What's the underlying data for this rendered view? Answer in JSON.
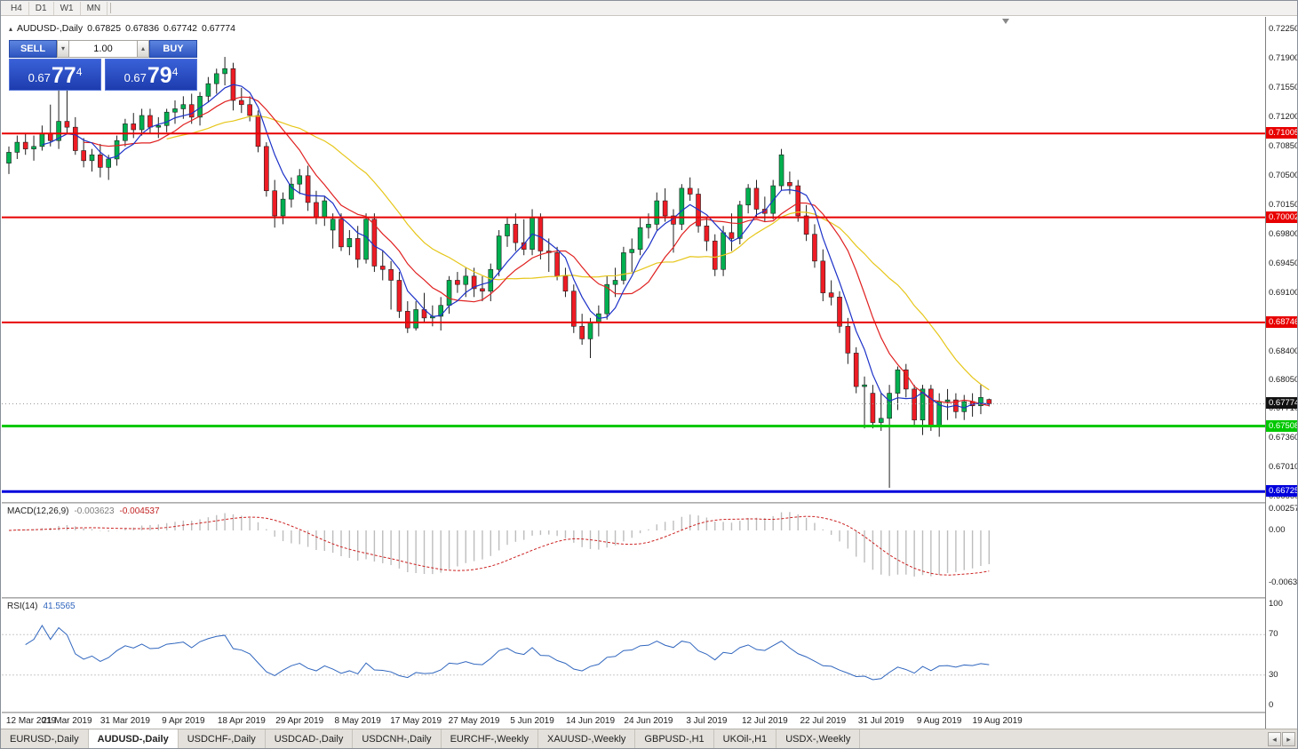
{
  "toolbar": {
    "timeframes": [
      "H4",
      "D1",
      "W1",
      "MN"
    ]
  },
  "chart_header": {
    "collapse_icon": "▴",
    "symbol": "AUDUSD-,Daily",
    "open": "0.67825",
    "high": "0.67836",
    "low": "0.67742",
    "close": "0.67774"
  },
  "trade_panel": {
    "sell_label": "SELL",
    "buy_label": "BUY",
    "volume": "1.00",
    "volume_down_icon": "▾",
    "volume_up_icon": "▴",
    "sell_price": {
      "base": "0.67",
      "big": "77",
      "pip": "4"
    },
    "buy_price": {
      "base": "0.67",
      "big": "79",
      "pip": "4"
    }
  },
  "price_axis": {
    "labels": [
      "0.72250",
      "0.71900",
      "0.71550",
      "0.71200",
      "0.70850",
      "0.70500",
      "0.70150",
      "0.69800",
      "0.69450",
      "0.69100",
      "0.68750",
      "0.68400",
      "0.68050",
      "0.67710",
      "0.67360",
      "0.67010",
      "0.66660"
    ]
  },
  "current_price": {
    "value": "0.67774",
    "badge_color": "#111111"
  },
  "macd": {
    "label": "MACD(12,26,9)",
    "main": "-0.003623",
    "signal": "-0.004537",
    "axis": [
      "0.002574",
      "0.00",
      "-0.006326"
    ]
  },
  "rsi": {
    "label": "RSI(14)",
    "value": "41.5565",
    "axis": [
      "100",
      "70",
      "30",
      "0"
    ]
  },
  "date_axis": {
    "labels": [
      "12 Mar 2019",
      "21 Mar 2019",
      "31 Mar 2019",
      "9 Apr 2019",
      "18 Apr 2019",
      "29 Apr 2019",
      "8 May 2019",
      "17 May 2019",
      "27 May 2019",
      "5 Jun 2019",
      "14 Jun 2019",
      "24 Jun 2019",
      "3 Jul 2019",
      "12 Jul 2019",
      "22 Jul 2019",
      "31 Jul 2019",
      "9 Aug 2019",
      "19 Aug 2019"
    ]
  },
  "tabs": {
    "items": [
      {
        "label": "EURUSD-,Daily",
        "active": false
      },
      {
        "label": "AUDUSD-,Daily",
        "active": true
      },
      {
        "label": "USDCHF-,Daily",
        "active": false
      },
      {
        "label": "USDCAD-,Daily",
        "active": false
      },
      {
        "label": "USDCNH-,Daily",
        "active": false
      },
      {
        "label": "EURCHF-,Weekly",
        "active": false
      },
      {
        "label": "XAUUSD-,Weekly",
        "active": false
      },
      {
        "label": "GBPUSD-,H1",
        "active": false
      },
      {
        "label": "UKOil-,H1",
        "active": false
      },
      {
        "label": "USDX-,Weekly",
        "active": false
      }
    ],
    "scroll_left": "◂",
    "scroll_right": "▸"
  },
  "chart_data": {
    "type": "candlestick",
    "symbol": "AUDUSD",
    "timeframe": "Daily",
    "bid": 0.67774,
    "colors": {
      "bull": "#00b050",
      "bear": "#ee1c25",
      "outline": "#1f1f1f",
      "macd_hist": "#bdbdbd",
      "macd_signal": "#cc2222",
      "rsi_line": "#3066be",
      "level_red": "#e80000",
      "level_green": "#00c800",
      "level_blue": "#0000dd"
    },
    "moving_averages": [
      {
        "period": 5,
        "color": "#1d32c8"
      },
      {
        "period": 10,
        "color": "#e02020"
      },
      {
        "period": 20,
        "color": "#e6c619"
      }
    ],
    "levels": [
      {
        "price": 0.71005,
        "label": "0.71005",
        "color": "#e80000",
        "thickness": 2
      },
      {
        "price": 0.70002,
        "label": "0.70002",
        "color": "#e80000",
        "thickness": 2
      },
      {
        "price": 0.68746,
        "label": "0.68746",
        "color": "#e80000",
        "thickness": 2
      },
      {
        "price": 0.67508,
        "label": "0.67508",
        "color": "#00c800",
        "thickness": 3
      },
      {
        "price": 0.66725,
        "label": "0.66725",
        "color": "#0000dd",
        "thickness": 3
      }
    ],
    "indicators": {
      "macd": {
        "fast": 12,
        "slow": 26,
        "signal": 9,
        "main_value": -0.003623,
        "signal_value": -0.004537
      },
      "rsi": {
        "period": 14,
        "value": 41.5565
      }
    },
    "candles": [
      [
        "2019-03-12",
        0.7065,
        0.7085,
        0.7052,
        0.7078
      ],
      [
        "2019-03-13",
        0.7078,
        0.7098,
        0.707,
        0.709
      ],
      [
        "2019-03-14",
        0.709,
        0.71,
        0.7075,
        0.7082
      ],
      [
        "2019-03-15",
        0.7082,
        0.7098,
        0.7068,
        0.7085
      ],
      [
        "2019-03-18",
        0.7085,
        0.711,
        0.708,
        0.71
      ],
      [
        "2019-03-19",
        0.71,
        0.7135,
        0.7085,
        0.7092
      ],
      [
        "2019-03-20",
        0.7092,
        0.7168,
        0.7082,
        0.7115
      ],
      [
        "2019-03-21",
        0.7115,
        0.716,
        0.71,
        0.7108
      ],
      [
        "2019-03-22",
        0.7108,
        0.712,
        0.7075,
        0.708
      ],
      [
        "2019-03-25",
        0.708,
        0.7095,
        0.706,
        0.7068
      ],
      [
        "2019-03-26",
        0.7068,
        0.7082,
        0.7055,
        0.7075
      ],
      [
        "2019-03-27",
        0.7075,
        0.7088,
        0.7048,
        0.706
      ],
      [
        "2019-03-28",
        0.706,
        0.7075,
        0.7045,
        0.707
      ],
      [
        "2019-03-29",
        0.707,
        0.7098,
        0.7062,
        0.7092
      ],
      [
        "2019-04-01",
        0.7092,
        0.7118,
        0.7085,
        0.7112
      ],
      [
        "2019-04-02",
        0.7112,
        0.7125,
        0.7095,
        0.7105
      ],
      [
        "2019-04-03",
        0.7105,
        0.713,
        0.7098,
        0.7122
      ],
      [
        "2019-04-04",
        0.7122,
        0.713,
        0.71,
        0.7108
      ],
      [
        "2019-04-05",
        0.7108,
        0.712,
        0.7095,
        0.711
      ],
      [
        "2019-04-08",
        0.711,
        0.713,
        0.7102,
        0.7126
      ],
      [
        "2019-04-09",
        0.7126,
        0.714,
        0.7112,
        0.713
      ],
      [
        "2019-04-10",
        0.713,
        0.7145,
        0.7118,
        0.7135
      ],
      [
        "2019-04-11",
        0.7135,
        0.7148,
        0.7112,
        0.712
      ],
      [
        "2019-04-12",
        0.712,
        0.715,
        0.711,
        0.7145
      ],
      [
        "2019-04-15",
        0.7145,
        0.7168,
        0.7138,
        0.716
      ],
      [
        "2019-04-16",
        0.716,
        0.7178,
        0.7148,
        0.7172
      ],
      [
        "2019-04-17",
        0.7172,
        0.7192,
        0.7158,
        0.7178
      ],
      [
        "2019-04-18",
        0.7178,
        0.7185,
        0.7128,
        0.714
      ],
      [
        "2019-04-19",
        0.714,
        0.7155,
        0.7125,
        0.7135
      ],
      [
        "2019-04-22",
        0.7135,
        0.7145,
        0.7115,
        0.7122
      ],
      [
        "2019-04-23",
        0.7122,
        0.7128,
        0.7078,
        0.7085
      ],
      [
        "2019-04-24",
        0.7085,
        0.709,
        0.7025,
        0.7032
      ],
      [
        "2019-04-25",
        0.7032,
        0.7045,
        0.6988,
        0.7002
      ],
      [
        "2019-04-26",
        0.7002,
        0.703,
        0.6992,
        0.7022
      ],
      [
        "2019-04-29",
        0.7022,
        0.7048,
        0.7012,
        0.704
      ],
      [
        "2019-04-30",
        0.704,
        0.7058,
        0.7028,
        0.705
      ],
      [
        "2019-05-01",
        0.705,
        0.7062,
        0.7008,
        0.7018
      ],
      [
        "2019-05-02",
        0.7018,
        0.7032,
        0.6992,
        0.7
      ],
      [
        "2019-05-03",
        0.7,
        0.7025,
        0.699,
        0.702
      ],
      [
        "2019-05-06",
        0.6985,
        0.7005,
        0.6963,
        0.6998
      ],
      [
        "2019-05-07",
        0.6998,
        0.7005,
        0.696,
        0.6965
      ],
      [
        "2019-05-08",
        0.6965,
        0.6985,
        0.6955,
        0.6975
      ],
      [
        "2019-05-09",
        0.6975,
        0.699,
        0.694,
        0.695
      ],
      [
        "2019-05-10",
        0.695,
        0.7005,
        0.6945,
        0.6998
      ],
      [
        "2019-05-13",
        0.6998,
        0.7005,
        0.6935,
        0.6942
      ],
      [
        "2019-05-14",
        0.6942,
        0.696,
        0.6925,
        0.6938
      ],
      [
        "2019-05-15",
        0.6938,
        0.6948,
        0.689,
        0.6925
      ],
      [
        "2019-05-16",
        0.6925,
        0.6935,
        0.688,
        0.6888
      ],
      [
        "2019-05-17",
        0.6888,
        0.69,
        0.6862,
        0.6868
      ],
      [
        "2019-05-20",
        0.6868,
        0.69,
        0.6865,
        0.689
      ],
      [
        "2019-05-21",
        0.689,
        0.691,
        0.6875,
        0.688
      ],
      [
        "2019-05-22",
        0.688,
        0.6895,
        0.687,
        0.6882
      ],
      [
        "2019-05-23",
        0.6882,
        0.6905,
        0.6865,
        0.6895
      ],
      [
        "2019-05-24",
        0.6895,
        0.693,
        0.6885,
        0.6925
      ],
      [
        "2019-05-27",
        0.6925,
        0.6935,
        0.691,
        0.692
      ],
      [
        "2019-05-28",
        0.692,
        0.694,
        0.6905,
        0.693
      ],
      [
        "2019-05-29",
        0.693,
        0.694,
        0.6905,
        0.6915
      ],
      [
        "2019-05-30",
        0.6915,
        0.693,
        0.69,
        0.6912
      ],
      [
        "2019-05-31",
        0.6912,
        0.6945,
        0.69,
        0.6938
      ],
      [
        "2019-06-03",
        0.6938,
        0.6985,
        0.693,
        0.6978
      ],
      [
        "2019-06-04",
        0.6978,
        0.7,
        0.6965,
        0.6992
      ],
      [
        "2019-06-05",
        0.6992,
        0.7005,
        0.696,
        0.697
      ],
      [
        "2019-06-06",
        0.697,
        0.6998,
        0.6955,
        0.6962
      ],
      [
        "2019-06-07",
        0.6962,
        0.701,
        0.6955,
        0.7
      ],
      [
        "2019-06-10",
        0.7,
        0.7005,
        0.695,
        0.696
      ],
      [
        "2019-06-11",
        0.696,
        0.6975,
        0.6935,
        0.6958
      ],
      [
        "2019-06-12",
        0.6958,
        0.6965,
        0.6925,
        0.693
      ],
      [
        "2019-06-13",
        0.693,
        0.694,
        0.6905,
        0.6912
      ],
      [
        "2019-06-14",
        0.6912,
        0.692,
        0.6862,
        0.687
      ],
      [
        "2019-06-17",
        0.687,
        0.6885,
        0.6848,
        0.6855
      ],
      [
        "2019-06-18",
        0.6855,
        0.688,
        0.6832,
        0.6875
      ],
      [
        "2019-06-19",
        0.6875,
        0.6895,
        0.6858,
        0.6885
      ],
      [
        "2019-06-20",
        0.6885,
        0.693,
        0.6878,
        0.692
      ],
      [
        "2019-06-21",
        0.692,
        0.694,
        0.6905,
        0.6925
      ],
      [
        "2019-06-24",
        0.6925,
        0.6965,
        0.692,
        0.6958
      ],
      [
        "2019-06-25",
        0.6958,
        0.6975,
        0.6935,
        0.6962
      ],
      [
        "2019-06-26",
        0.6962,
        0.7,
        0.6955,
        0.6988
      ],
      [
        "2019-06-27",
        0.6988,
        0.7005,
        0.6975,
        0.6992
      ],
      [
        "2019-06-28",
        0.6992,
        0.703,
        0.6985,
        0.702
      ],
      [
        "2019-07-01",
        0.702,
        0.7035,
        0.6995,
        0.7002
      ],
      [
        "2019-07-02",
        0.7002,
        0.701,
        0.6958,
        0.6992
      ],
      [
        "2019-07-03",
        0.6992,
        0.704,
        0.6985,
        0.7035
      ],
      [
        "2019-07-04",
        0.7035,
        0.7048,
        0.702,
        0.7028
      ],
      [
        "2019-07-05",
        0.7028,
        0.7035,
        0.6982,
        0.699
      ],
      [
        "2019-07-08",
        0.699,
        0.7,
        0.696,
        0.6972
      ],
      [
        "2019-07-09",
        0.6972,
        0.698,
        0.693,
        0.6938
      ],
      [
        "2019-07-10",
        0.6938,
        0.699,
        0.693,
        0.6982
      ],
      [
        "2019-07-11",
        0.6982,
        0.7005,
        0.696,
        0.6975
      ],
      [
        "2019-07-12",
        0.6975,
        0.702,
        0.6968,
        0.7015
      ],
      [
        "2019-07-15",
        0.7015,
        0.704,
        0.7005,
        0.7035
      ],
      [
        "2019-07-16",
        0.7035,
        0.7045,
        0.7,
        0.701
      ],
      [
        "2019-07-17",
        0.701,
        0.7025,
        0.6995,
        0.7005
      ],
      [
        "2019-07-18",
        0.7005,
        0.7045,
        0.6998,
        0.7038
      ],
      [
        "2019-07-19",
        0.7038,
        0.7082,
        0.7032,
        0.7075
      ],
      [
        "2019-07-22",
        0.7042,
        0.7055,
        0.7028,
        0.7038
      ],
      [
        "2019-07-23",
        0.7038,
        0.7045,
        0.6995,
        0.7002
      ],
      [
        "2019-07-24",
        0.7002,
        0.7015,
        0.6972,
        0.698
      ],
      [
        "2019-07-25",
        0.698,
        0.6992,
        0.694,
        0.6948
      ],
      [
        "2019-07-26",
        0.6948,
        0.6962,
        0.69,
        0.691
      ],
      [
        "2019-07-29",
        0.691,
        0.6925,
        0.6895,
        0.6905
      ],
      [
        "2019-07-30",
        0.6905,
        0.6912,
        0.6862,
        0.687
      ],
      [
        "2019-07-31",
        0.687,
        0.688,
        0.6825,
        0.6838
      ],
      [
        "2019-08-01",
        0.6838,
        0.6845,
        0.679,
        0.6798
      ],
      [
        "2019-08-02",
        0.6798,
        0.681,
        0.6748,
        0.68
      ],
      [
        "2019-08-05",
        0.679,
        0.68,
        0.6748,
        0.6755
      ],
      [
        "2019-08-06",
        0.6755,
        0.679,
        0.6745,
        0.676
      ],
      [
        "2019-08-07",
        0.676,
        0.68,
        0.6677,
        0.679
      ],
      [
        "2019-08-08",
        0.679,
        0.6822,
        0.677,
        0.6818
      ],
      [
        "2019-08-09",
        0.6818,
        0.6825,
        0.6785,
        0.6795
      ],
      [
        "2019-08-12",
        0.6795,
        0.68,
        0.675,
        0.6758
      ],
      [
        "2019-08-13",
        0.6758,
        0.68,
        0.674,
        0.6795
      ],
      [
        "2019-08-14",
        0.6795,
        0.68,
        0.6745,
        0.6752
      ],
      [
        "2019-08-15",
        0.6752,
        0.679,
        0.6738,
        0.678
      ],
      [
        "2019-08-16",
        0.678,
        0.6795,
        0.6758,
        0.6782
      ],
      [
        "2019-08-19",
        0.6782,
        0.679,
        0.676,
        0.6768
      ],
      [
        "2019-08-20",
        0.6768,
        0.6788,
        0.6758,
        0.678
      ],
      [
        "2019-08-21",
        0.678,
        0.679,
        0.6762,
        0.6775
      ],
      [
        "2019-08-22",
        0.6775,
        0.68,
        0.6765,
        0.6785
      ],
      [
        "2019-08-23",
        0.67825,
        0.67836,
        0.67742,
        0.67774
      ]
    ]
  }
}
